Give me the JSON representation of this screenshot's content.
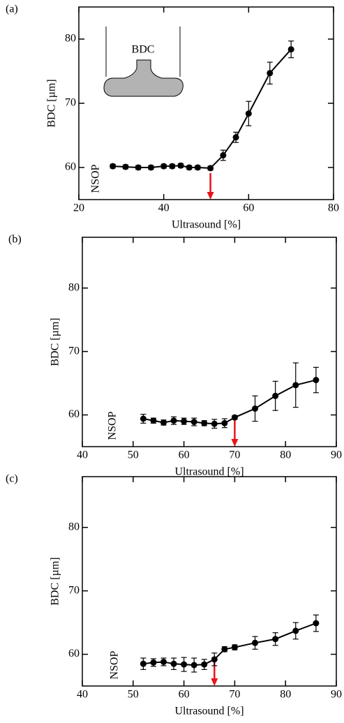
{
  "chart_data": [
    {
      "type": "line",
      "panel_label": "(a)",
      "xlabel": "Ultrasound [%]",
      "ylabel": "BDC [µm]",
      "annotation": "NSOP",
      "inset_label": "BDC",
      "xlim": [
        20,
        80
      ],
      "ylim": [
        55,
        85
      ],
      "xticks": [
        20,
        40,
        60,
        80
      ],
      "yticks": [
        60,
        70,
        80
      ],
      "x": [
        28,
        31,
        34,
        37,
        40,
        42,
        44,
        46,
        48,
        51,
        54,
        57,
        60,
        65,
        70
      ],
      "series": [
        {
          "color": "#000000",
          "values": [
            60.2,
            60.1,
            60.0,
            60.0,
            60.2,
            60.2,
            60.3,
            60.0,
            60.0,
            59.9,
            61.9,
            64.7,
            68.4,
            74.7,
            78.4
          ],
          "errors": [
            0.3,
            0.3,
            0.3,
            0.3,
            0.3,
            0.3,
            0.3,
            0.3,
            0.3,
            0.3,
            0.8,
            0.8,
            1.9,
            1.7,
            1.3
          ]
        }
      ],
      "marker_x": 51,
      "marker_color": "#e8141b"
    },
    {
      "type": "line",
      "panel_label": "(b)",
      "xlabel": "Ultrasound [%]",
      "ylabel": "BDC [µm]",
      "annotation": "NSOP",
      "xlim": [
        40,
        90
      ],
      "ylim": [
        55,
        88
      ],
      "xticks": [
        40,
        50,
        60,
        70,
        80,
        90
      ],
      "yticks": [
        60,
        70,
        80
      ],
      "x": [
        52,
        54,
        56,
        58,
        60,
        62,
        64,
        66,
        68,
        70,
        74,
        78,
        82,
        86
      ],
      "series": [
        {
          "color": "#000000",
          "values": [
            59.4,
            59.1,
            58.8,
            59.1,
            59.0,
            58.9,
            58.7,
            58.6,
            58.7,
            59.6,
            61.0,
            63.0,
            64.7,
            65.5
          ],
          "errors": [
            0.7,
            0.4,
            0.4,
            0.6,
            0.5,
            0.6,
            0.4,
            0.7,
            0.7,
            0.3,
            2.0,
            2.3,
            3.5,
            2.0
          ]
        }
      ],
      "marker_x": 70,
      "marker_color": "#e8141b"
    },
    {
      "type": "line",
      "panel_label": "(c)",
      "xlabel": "Ultrasound [%]",
      "ylabel": "BDC [µm]",
      "annotation": "NSOP",
      "xlim": [
        40,
        90
      ],
      "ylim": [
        55,
        88
      ],
      "xticks": [
        40,
        50,
        60,
        70,
        80,
        90
      ],
      "yticks": [
        60,
        70,
        80
      ],
      "x": [
        52,
        54,
        56,
        58,
        60,
        62,
        64,
        66,
        68,
        70,
        74,
        78,
        82,
        86
      ],
      "series": [
        {
          "color": "#000000",
          "values": [
            58.5,
            58.7,
            58.8,
            58.5,
            58.4,
            58.3,
            58.4,
            59.2,
            60.8,
            61.1,
            61.8,
            62.4,
            63.7,
            64.9
          ],
          "errors": [
            0.9,
            0.6,
            0.6,
            0.9,
            1.1,
            1.1,
            0.8,
            1.0,
            0.4,
            0.4,
            1.0,
            1.0,
            1.3,
            1.3
          ]
        }
      ],
      "marker_x": 66,
      "marker_color": "#e8141b"
    }
  ]
}
